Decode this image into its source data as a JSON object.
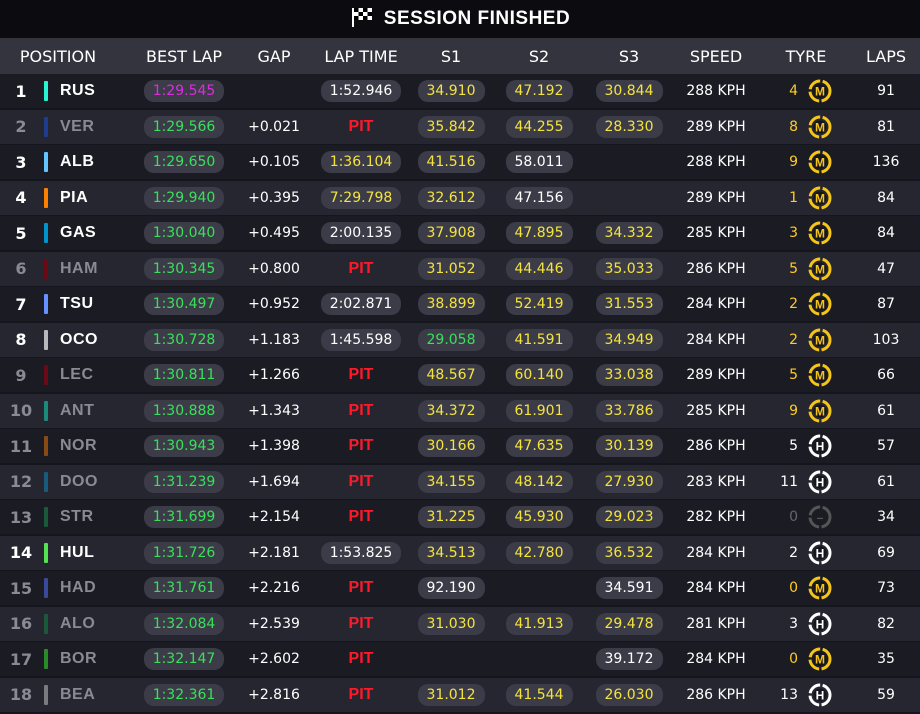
{
  "banner": {
    "title": "SESSION FINISHED",
    "icon": "checkered-flag-icon"
  },
  "headers": {
    "position": "POSITION",
    "best_lap": "BEST LAP",
    "gap": "GAP",
    "lap_time": "LAP TIME",
    "s1": "S1",
    "s2": "S2",
    "s3": "S3",
    "speed": "SPEED",
    "tyre": "TYRE",
    "laps": "LAPS"
  },
  "colors": {
    "green": "#39e05a",
    "purple": "#e02ae0",
    "yellow": "#f4e43c",
    "pit": "#ff1a2a",
    "medium_tyre": "#f5c518",
    "hard_tyre": "#ffffff"
  },
  "rows": [
    {
      "pos": "1",
      "code": "RUS",
      "team_color": "#27f4d2",
      "dim": false,
      "best": "1:29.545",
      "best_color": "purple",
      "gap": "",
      "lap": "1:52.946",
      "lap_color": "white",
      "s1": "34.910",
      "s1c": "yellow",
      "s2": "47.192",
      "s2c": "yellow",
      "s3": "30.844",
      "s3c": "yellow",
      "speed": "288 KPH",
      "tyre_age": "4",
      "tyre_age_color": "orange",
      "tyre": "M",
      "laps": "91"
    },
    {
      "pos": "2",
      "code": "VER",
      "team_color": "#1e3d8f",
      "dim": true,
      "best": "1:29.566",
      "best_color": "green",
      "gap": "+0.021",
      "lap": "PIT",
      "lap_color": "pit",
      "s1": "35.842",
      "s1c": "yellow",
      "s2": "44.255",
      "s2c": "yellow",
      "s3": "28.330",
      "s3c": "yellow",
      "speed": "289 KPH",
      "tyre_age": "8",
      "tyre_age_color": "orange",
      "tyre": "M",
      "laps": "81"
    },
    {
      "pos": "3",
      "code": "ALB",
      "team_color": "#64c4ff",
      "dim": false,
      "best": "1:29.650",
      "best_color": "green",
      "gap": "+0.105",
      "lap": "1:36.104",
      "lap_color": "yellow",
      "s1": "41.516",
      "s1c": "yellow",
      "s2": "58.011",
      "s2c": "white",
      "s3": "",
      "s3c": "white",
      "speed": "288 KPH",
      "tyre_age": "9",
      "tyre_age_color": "orange",
      "tyre": "M",
      "laps": "136"
    },
    {
      "pos": "4",
      "code": "PIA",
      "team_color": "#ff8000",
      "dim": false,
      "best": "1:29.940",
      "best_color": "green",
      "gap": "+0.395",
      "lap": "7:29.798",
      "lap_color": "yellow",
      "s1": "32.612",
      "s1c": "yellow",
      "s2": "47.156",
      "s2c": "white",
      "s3": "",
      "s3c": "white",
      "speed": "289 KPH",
      "tyre_age": "1",
      "tyre_age_color": "orange",
      "tyre": "M",
      "laps": "84"
    },
    {
      "pos": "5",
      "code": "GAS",
      "team_color": "#0093cc",
      "dim": false,
      "best": "1:30.040",
      "best_color": "green",
      "gap": "+0.495",
      "lap": "2:00.135",
      "lap_color": "white",
      "s1": "37.908",
      "s1c": "yellow",
      "s2": "47.895",
      "s2c": "yellow",
      "s3": "34.332",
      "s3c": "yellow",
      "speed": "285 KPH",
      "tyre_age": "3",
      "tyre_age_color": "orange",
      "tyre": "M",
      "laps": "84"
    },
    {
      "pos": "6",
      "code": "HAM",
      "team_color": "#6b0a14",
      "dim": true,
      "best": "1:30.345",
      "best_color": "green",
      "gap": "+0.800",
      "lap": "PIT",
      "lap_color": "pit",
      "s1": "31.052",
      "s1c": "yellow",
      "s2": "44.446",
      "s2c": "yellow",
      "s3": "35.033",
      "s3c": "yellow",
      "speed": "286 KPH",
      "tyre_age": "5",
      "tyre_age_color": "orange",
      "tyre": "M",
      "laps": "47"
    },
    {
      "pos": "7",
      "code": "TSU",
      "team_color": "#6692ff",
      "dim": false,
      "best": "1:30.497",
      "best_color": "green",
      "gap": "+0.952",
      "lap": "2:02.871",
      "lap_color": "white",
      "s1": "38.899",
      "s1c": "yellow",
      "s2": "52.419",
      "s2c": "yellow",
      "s3": "31.553",
      "s3c": "yellow",
      "speed": "284 KPH",
      "tyre_age": "2",
      "tyre_age_color": "orange",
      "tyre": "M",
      "laps": "87"
    },
    {
      "pos": "8",
      "code": "OCO",
      "team_color": "#b6babd",
      "dim": false,
      "best": "1:30.728",
      "best_color": "green",
      "gap": "+1.183",
      "lap": "1:45.598",
      "lap_color": "white",
      "s1": "29.058",
      "s1c": "green",
      "s2": "41.591",
      "s2c": "yellow",
      "s3": "34.949",
      "s3c": "yellow",
      "speed": "284 KPH",
      "tyre_age": "2",
      "tyre_age_color": "orange",
      "tyre": "M",
      "laps": "103"
    },
    {
      "pos": "9",
      "code": "LEC",
      "team_color": "#6b0a14",
      "dim": true,
      "best": "1:30.811",
      "best_color": "green",
      "gap": "+1.266",
      "lap": "PIT",
      "lap_color": "pit",
      "s1": "48.567",
      "s1c": "yellow",
      "s2": "60.140",
      "s2c": "yellow",
      "s3": "33.038",
      "s3c": "yellow",
      "speed": "289 KPH",
      "tyre_age": "5",
      "tyre_age_color": "orange",
      "tyre": "M",
      "laps": "66"
    },
    {
      "pos": "10",
      "code": "ANT",
      "team_color": "#1a8a7a",
      "dim": true,
      "best": "1:30.888",
      "best_color": "green",
      "gap": "+1.343",
      "lap": "PIT",
      "lap_color": "pit",
      "s1": "34.372",
      "s1c": "yellow",
      "s2": "61.901",
      "s2c": "yellow",
      "s3": "33.786",
      "s3c": "yellow",
      "speed": "285 KPH",
      "tyre_age": "9",
      "tyre_age_color": "orange",
      "tyre": "M",
      "laps": "61"
    },
    {
      "pos": "11",
      "code": "NOR",
      "team_color": "#8a4a14",
      "dim": true,
      "best": "1:30.943",
      "best_color": "green",
      "gap": "+1.398",
      "lap": "PIT",
      "lap_color": "pit",
      "s1": "30.166",
      "s1c": "yellow",
      "s2": "47.635",
      "s2c": "yellow",
      "s3": "30.139",
      "s3c": "yellow",
      "speed": "286 KPH",
      "tyre_age": "5",
      "tyre_age_color": "white",
      "tyre": "H",
      "laps": "57"
    },
    {
      "pos": "12",
      "code": "DOO",
      "team_color": "#1a5a7a",
      "dim": true,
      "best": "1:31.239",
      "best_color": "green",
      "gap": "+1.694",
      "lap": "PIT",
      "lap_color": "pit",
      "s1": "34.155",
      "s1c": "yellow",
      "s2": "48.142",
      "s2c": "yellow",
      "s3": "27.930",
      "s3c": "yellow",
      "speed": "283 KPH",
      "tyre_age": "11",
      "tyre_age_color": "white",
      "tyre": "H",
      "laps": "61"
    },
    {
      "pos": "13",
      "code": "STR",
      "team_color": "#1a5a3a",
      "dim": true,
      "best": "1:31.699",
      "best_color": "green",
      "gap": "+2.154",
      "lap": "PIT",
      "lap_color": "pit",
      "s1": "31.225",
      "s1c": "yellow",
      "s2": "45.930",
      "s2c": "yellow",
      "s3": "29.023",
      "s3c": "yellow",
      "speed": "282 KPH",
      "tyre_age": "0",
      "tyre_age_color": "dim",
      "tyre": "-",
      "laps": "34"
    },
    {
      "pos": "14",
      "code": "HUL",
      "team_color": "#52e252",
      "dim": false,
      "best": "1:31.726",
      "best_color": "green",
      "gap": "+2.181",
      "lap": "1:53.825",
      "lap_color": "white",
      "s1": "34.513",
      "s1c": "yellow",
      "s2": "42.780",
      "s2c": "yellow",
      "s3": "36.532",
      "s3c": "yellow",
      "speed": "284 KPH",
      "tyre_age": "2",
      "tyre_age_color": "white",
      "tyre": "H",
      "laps": "69"
    },
    {
      "pos": "15",
      "code": "HAD",
      "team_color": "#3a4a9a",
      "dim": true,
      "best": "1:31.761",
      "best_color": "green",
      "gap": "+2.216",
      "lap": "PIT",
      "lap_color": "pit",
      "s1": "92.190",
      "s1c": "white",
      "s2": "",
      "s2c": "white",
      "s3": "34.591",
      "s3c": "white",
      "speed": "284 KPH",
      "tyre_age": "0",
      "tyre_age_color": "orange",
      "tyre": "M",
      "laps": "73"
    },
    {
      "pos": "16",
      "code": "ALO",
      "team_color": "#1a5a3a",
      "dim": true,
      "best": "1:32.084",
      "best_color": "green",
      "gap": "+2.539",
      "lap": "PIT",
      "lap_color": "pit",
      "s1": "31.030",
      "s1c": "yellow",
      "s2": "41.913",
      "s2c": "yellow",
      "s3": "29.478",
      "s3c": "yellow",
      "speed": "281 KPH",
      "tyre_age": "3",
      "tyre_age_color": "white",
      "tyre": "H",
      "laps": "82"
    },
    {
      "pos": "17",
      "code": "BOR",
      "team_color": "#2a8a2a",
      "dim": true,
      "best": "1:32.147",
      "best_color": "green",
      "gap": "+2.602",
      "lap": "PIT",
      "lap_color": "pit",
      "s1": "",
      "s1c": "white",
      "s2": "",
      "s2c": "white",
      "s3": "39.172",
      "s3c": "white",
      "speed": "284 KPH",
      "tyre_age": "0",
      "tyre_age_color": "orange",
      "tyre": "M",
      "laps": "35"
    },
    {
      "pos": "18",
      "code": "BEA",
      "team_color": "#7a7a80",
      "dim": true,
      "best": "1:32.361",
      "best_color": "green",
      "gap": "+2.816",
      "lap": "PIT",
      "lap_color": "pit",
      "s1": "31.012",
      "s1c": "yellow",
      "s2": "41.544",
      "s2c": "yellow",
      "s3": "26.030",
      "s3c": "yellow",
      "speed": "286 KPH",
      "tyre_age": "13",
      "tyre_age_color": "white",
      "tyre": "H",
      "laps": "59"
    }
  ]
}
